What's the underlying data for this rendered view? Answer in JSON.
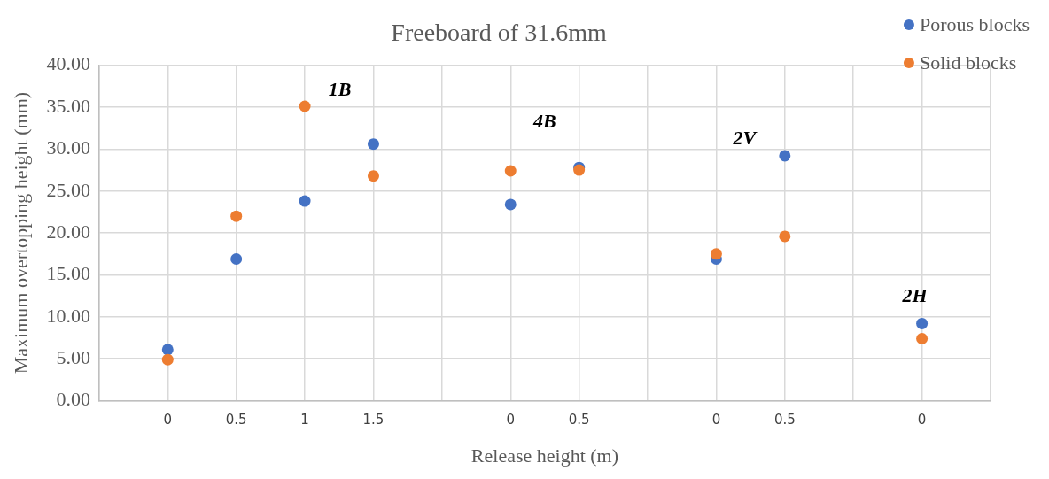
{
  "chart_data": {
    "type": "scatter",
    "title": "Freeboard of 31.6mm",
    "xlabel": "Release height (m)",
    "ylabel": "Maximum overtopping height (mm)",
    "categories": [
      null,
      "0",
      "0.5",
      "1",
      "1.5",
      null,
      "0",
      "0.5",
      null,
      "0",
      "0.5",
      null,
      "0",
      null
    ],
    "series": [
      {
        "name": "Porous blocks",
        "color": "#4472c4",
        "values": [
          null,
          6.1,
          16.9,
          23.8,
          30.6,
          null,
          23.4,
          27.8,
          null,
          16.9,
          29.2,
          null,
          9.2,
          null
        ]
      },
      {
        "name": "Solid blocks",
        "color": "#ed7d31",
        "values": [
          null,
          4.9,
          22.0,
          35.1,
          26.8,
          null,
          27.4,
          27.5,
          null,
          17.5,
          19.6,
          null,
          7.4,
          null
        ]
      }
    ],
    "ylim": [
      0,
      40
    ],
    "yticks": [
      {
        "value": 0,
        "label": "0.00"
      },
      {
        "value": 5,
        "label": "5.00"
      },
      {
        "value": 10,
        "label": "10.00"
      },
      {
        "value": 15,
        "label": "15.00"
      },
      {
        "value": 20,
        "label": "20.00"
      },
      {
        "value": 25,
        "label": "25.00"
      },
      {
        "value": 30,
        "label": "30.00"
      },
      {
        "value": 35,
        "label": "35.00"
      },
      {
        "value": 40,
        "label": "40.00"
      }
    ],
    "annotations": [
      "1B",
      "4B",
      "2V",
      "2H"
    ],
    "grid": true,
    "legend": "top right",
    "marker": "circle"
  }
}
